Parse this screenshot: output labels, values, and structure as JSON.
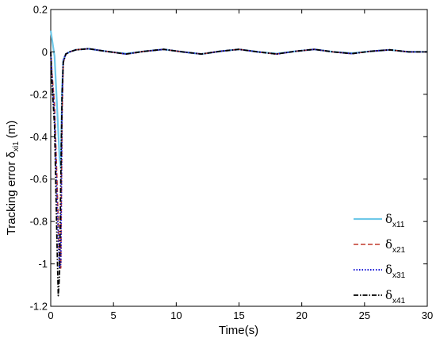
{
  "chart_data": {
    "type": "line",
    "title": "",
    "xlabel": "Time(s)",
    "ylabel": {
      "main": "Tracking error δ",
      "subscript": "xi1",
      "unit": "(m)"
    },
    "xlim": [
      0,
      30
    ],
    "ylim": [
      -1.2,
      0.2
    ],
    "xticks": [
      "0",
      "5",
      "10",
      "15",
      "20",
      "25",
      "30"
    ],
    "yticks": [
      "0.2",
      "0",
      "-0.2",
      "-0.4",
      "-0.6",
      "-0.8",
      "-1",
      "-1.2"
    ],
    "grid": false,
    "legend_position": "bottom-right",
    "series": [
      {
        "name": "δx11",
        "symbol": "δ",
        "subscript": "x11",
        "color": "#6fc8e8",
        "dash": "solid",
        "width": 2.2,
        "x": [
          0,
          0.1,
          0.3,
          0.5,
          0.7,
          0.8,
          0.9,
          1.0,
          1.2,
          1.5,
          2.0,
          3.0,
          4.5,
          6.0,
          7.5,
          9.0,
          10.5,
          12.0,
          13.5,
          15.0,
          16.5,
          18.0,
          19.5,
          21.0,
          22.5,
          24.0,
          25.5,
          27.0,
          28.5,
          30.0
        ],
        "y": [
          0.1,
          0.06,
          -0.02,
          -0.25,
          -0.5,
          -0.55,
          -0.18,
          -0.04,
          -0.01,
          0.0,
          0.01,
          0.015,
          0.002,
          -0.008,
          0.003,
          0.012,
          0.0,
          -0.01,
          0.003,
          0.012,
          0.0,
          -0.008,
          0.003,
          0.012,
          0.0,
          -0.006,
          0.003,
          0.01,
          0.0,
          0.0
        ]
      },
      {
        "name": "δx21",
        "symbol": "δ",
        "subscript": "x21",
        "color": "#c0392b",
        "dash": "6 3",
        "width": 1.6,
        "x": [
          0,
          0.1,
          0.3,
          0.5,
          0.7,
          0.8,
          0.9,
          1.0,
          1.2,
          1.5,
          2.0,
          3.0,
          4.5,
          6.0,
          7.5,
          9.0,
          10.5,
          12.0,
          13.5,
          15.0,
          16.5,
          18.0,
          19.5,
          21.0,
          22.5,
          24.0,
          25.5,
          27.0,
          28.5,
          30.0
        ],
        "y": [
          0.0,
          -0.1,
          -0.25,
          -0.6,
          -1.0,
          -1.02,
          -0.3,
          -0.05,
          -0.01,
          0.0,
          0.01,
          0.015,
          0.002,
          -0.01,
          0.003,
          0.012,
          0.0,
          -0.01,
          0.003,
          0.012,
          0.0,
          -0.01,
          0.003,
          0.012,
          0.0,
          -0.008,
          0.003,
          0.01,
          0.0,
          0.0
        ]
      },
      {
        "name": "δx31",
        "symbol": "δ",
        "subscript": "x31",
        "color": "#1a1ad6",
        "dash": "1.5 2",
        "width": 2,
        "x": [
          0,
          0.1,
          0.3,
          0.5,
          0.7,
          0.8,
          0.9,
          1.0,
          1.2,
          1.5,
          2.0,
          3.0,
          4.5,
          6.0,
          7.5,
          9.0,
          10.5,
          12.0,
          13.5,
          15.0,
          16.5,
          18.0,
          19.5,
          21.0,
          22.5,
          24.0,
          25.5,
          27.0,
          28.5,
          30.0
        ],
        "y": [
          0.0,
          -0.12,
          -0.3,
          -0.7,
          -1.02,
          -1.0,
          -0.25,
          -0.04,
          -0.01,
          0.0,
          0.01,
          0.015,
          0.002,
          -0.01,
          0.003,
          0.012,
          0.0,
          -0.01,
          0.003,
          0.012,
          0.0,
          -0.01,
          0.003,
          0.012,
          0.0,
          -0.008,
          0.003,
          0.01,
          0.0,
          0.0
        ]
      },
      {
        "name": "δx41",
        "symbol": "δ",
        "subscript": "x41",
        "color": "#000000",
        "dash": "6 2 1.5 2",
        "width": 1.8,
        "x": [
          0,
          0.1,
          0.3,
          0.5,
          0.6,
          0.7,
          0.8,
          0.9,
          1.0,
          1.2,
          1.5,
          2.0,
          3.0,
          4.5,
          6.0,
          7.5,
          9.0,
          10.5,
          12.0,
          13.5,
          15.0,
          16.5,
          18.0,
          19.5,
          21.0,
          22.5,
          24.0,
          25.5,
          27.0,
          28.5,
          30.0
        ],
        "y": [
          0.0,
          -0.15,
          -0.35,
          -0.9,
          -1.15,
          -1.05,
          -0.6,
          -0.2,
          -0.05,
          -0.01,
          0.0,
          0.01,
          0.015,
          0.002,
          -0.01,
          0.003,
          0.012,
          0.0,
          -0.01,
          0.003,
          0.012,
          0.0,
          -0.01,
          0.003,
          0.012,
          0.0,
          -0.008,
          0.003,
          0.01,
          0.0,
          0.0
        ]
      }
    ]
  }
}
